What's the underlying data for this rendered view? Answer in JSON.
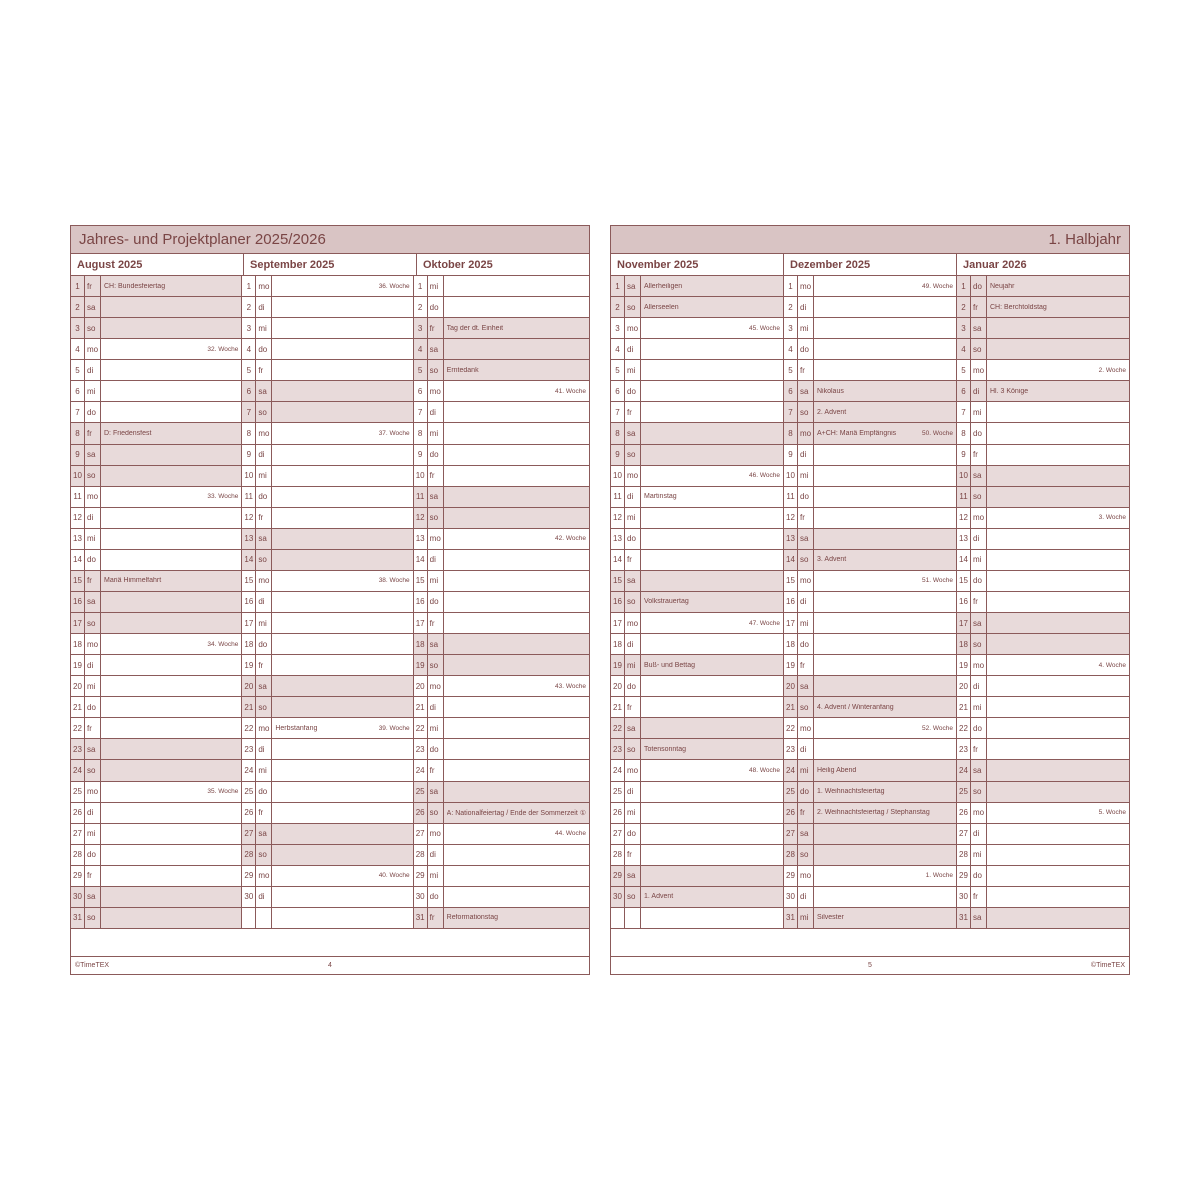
{
  "colors": {
    "line": "#8b5a5a",
    "text": "#7a4545",
    "header_bg": "#d9c4c4",
    "shade_bg": "#e8dada",
    "page_bg": "#ffffff"
  },
  "left_page": {
    "title": "Jahres- und Projektplaner 2025/2026",
    "footer_left": "©TimeTEX",
    "footer_center": "4",
    "footer_right": "",
    "months": [
      {
        "name": "August 2025",
        "days": [
          {
            "n": 1,
            "d": "fr",
            "note": "CH: Bundesfeiertag",
            "shaded": true
          },
          {
            "n": 2,
            "d": "sa",
            "shaded": true
          },
          {
            "n": 3,
            "d": "so",
            "shaded": true
          },
          {
            "n": 4,
            "d": "mo",
            "right": "32. Woche"
          },
          {
            "n": 5,
            "d": "di"
          },
          {
            "n": 6,
            "d": "mi"
          },
          {
            "n": 7,
            "d": "do"
          },
          {
            "n": 8,
            "d": "fr",
            "note": "D: Friedensfest",
            "shaded": true
          },
          {
            "n": 9,
            "d": "sa",
            "shaded": true
          },
          {
            "n": 10,
            "d": "so",
            "shaded": true
          },
          {
            "n": 11,
            "d": "mo",
            "right": "33. Woche"
          },
          {
            "n": 12,
            "d": "di"
          },
          {
            "n": 13,
            "d": "mi"
          },
          {
            "n": 14,
            "d": "do"
          },
          {
            "n": 15,
            "d": "fr",
            "note": "Mariä Himmelfahrt",
            "shaded": true
          },
          {
            "n": 16,
            "d": "sa",
            "shaded": true
          },
          {
            "n": 17,
            "d": "so",
            "shaded": true
          },
          {
            "n": 18,
            "d": "mo",
            "right": "34. Woche"
          },
          {
            "n": 19,
            "d": "di"
          },
          {
            "n": 20,
            "d": "mi"
          },
          {
            "n": 21,
            "d": "do"
          },
          {
            "n": 22,
            "d": "fr"
          },
          {
            "n": 23,
            "d": "sa",
            "shaded": true
          },
          {
            "n": 24,
            "d": "so",
            "shaded": true
          },
          {
            "n": 25,
            "d": "mo",
            "right": "35. Woche"
          },
          {
            "n": 26,
            "d": "di"
          },
          {
            "n": 27,
            "d": "mi"
          },
          {
            "n": 28,
            "d": "do"
          },
          {
            "n": 29,
            "d": "fr"
          },
          {
            "n": 30,
            "d": "sa",
            "shaded": true
          },
          {
            "n": 31,
            "d": "so",
            "shaded": true
          }
        ]
      },
      {
        "name": "September 2025",
        "days": [
          {
            "n": 1,
            "d": "mo",
            "right": "36. Woche"
          },
          {
            "n": 2,
            "d": "di"
          },
          {
            "n": 3,
            "d": "mi"
          },
          {
            "n": 4,
            "d": "do"
          },
          {
            "n": 5,
            "d": "fr"
          },
          {
            "n": 6,
            "d": "sa",
            "shaded": true
          },
          {
            "n": 7,
            "d": "so",
            "shaded": true
          },
          {
            "n": 8,
            "d": "mo",
            "right": "37. Woche"
          },
          {
            "n": 9,
            "d": "di"
          },
          {
            "n": 10,
            "d": "mi"
          },
          {
            "n": 11,
            "d": "do"
          },
          {
            "n": 12,
            "d": "fr"
          },
          {
            "n": 13,
            "d": "sa",
            "shaded": true
          },
          {
            "n": 14,
            "d": "so",
            "shaded": true
          },
          {
            "n": 15,
            "d": "mo",
            "right": "38. Woche"
          },
          {
            "n": 16,
            "d": "di"
          },
          {
            "n": 17,
            "d": "mi"
          },
          {
            "n": 18,
            "d": "do"
          },
          {
            "n": 19,
            "d": "fr"
          },
          {
            "n": 20,
            "d": "sa",
            "shaded": true
          },
          {
            "n": 21,
            "d": "so",
            "shaded": true
          },
          {
            "n": 22,
            "d": "mo",
            "note": "Herbstanfang",
            "right": "39. Woche"
          },
          {
            "n": 23,
            "d": "di"
          },
          {
            "n": 24,
            "d": "mi"
          },
          {
            "n": 25,
            "d": "do"
          },
          {
            "n": 26,
            "d": "fr"
          },
          {
            "n": 27,
            "d": "sa",
            "shaded": true
          },
          {
            "n": 28,
            "d": "so",
            "shaded": true
          },
          {
            "n": 29,
            "d": "mo",
            "right": "40. Woche"
          },
          {
            "n": 30,
            "d": "di"
          },
          {
            "empty": true
          }
        ]
      },
      {
        "name": "Oktober 2025",
        "days": [
          {
            "n": 1,
            "d": "mi"
          },
          {
            "n": 2,
            "d": "do"
          },
          {
            "n": 3,
            "d": "fr",
            "note": "Tag der dt. Einheit",
            "shaded": true
          },
          {
            "n": 4,
            "d": "sa",
            "shaded": true
          },
          {
            "n": 5,
            "d": "so",
            "note": "Erntedank",
            "shaded": true
          },
          {
            "n": 6,
            "d": "mo",
            "right": "41. Woche"
          },
          {
            "n": 7,
            "d": "di"
          },
          {
            "n": 8,
            "d": "mi"
          },
          {
            "n": 9,
            "d": "do"
          },
          {
            "n": 10,
            "d": "fr"
          },
          {
            "n": 11,
            "d": "sa",
            "shaded": true
          },
          {
            "n": 12,
            "d": "so",
            "shaded": true
          },
          {
            "n": 13,
            "d": "mo",
            "right": "42. Woche"
          },
          {
            "n": 14,
            "d": "di"
          },
          {
            "n": 15,
            "d": "mi"
          },
          {
            "n": 16,
            "d": "do"
          },
          {
            "n": 17,
            "d": "fr"
          },
          {
            "n": 18,
            "d": "sa",
            "shaded": true
          },
          {
            "n": 19,
            "d": "so",
            "shaded": true
          },
          {
            "n": 20,
            "d": "mo",
            "right": "43. Woche"
          },
          {
            "n": 21,
            "d": "di"
          },
          {
            "n": 22,
            "d": "mi"
          },
          {
            "n": 23,
            "d": "do"
          },
          {
            "n": 24,
            "d": "fr"
          },
          {
            "n": 25,
            "d": "sa",
            "shaded": true
          },
          {
            "n": 26,
            "d": "so",
            "note": "A: Nationalfeiertag / Ende der Sommerzeit ①",
            "shaded": true
          },
          {
            "n": 27,
            "d": "mo",
            "right": "44. Woche"
          },
          {
            "n": 28,
            "d": "di"
          },
          {
            "n": 29,
            "d": "mi"
          },
          {
            "n": 30,
            "d": "do"
          },
          {
            "n": 31,
            "d": "fr",
            "note": "Reformationstag",
            "shaded": true
          }
        ]
      }
    ]
  },
  "right_page": {
    "title": "1. Halbjahr",
    "footer_left": "",
    "footer_center": "5",
    "footer_right": "©TimeTEX",
    "months": [
      {
        "name": "November 2025",
        "days": [
          {
            "n": 1,
            "d": "sa",
            "note": "Allerheiligen",
            "shaded": true
          },
          {
            "n": 2,
            "d": "so",
            "note": "Allerseelen",
            "shaded": true
          },
          {
            "n": 3,
            "d": "mo",
            "right": "45. Woche"
          },
          {
            "n": 4,
            "d": "di"
          },
          {
            "n": 5,
            "d": "mi"
          },
          {
            "n": 6,
            "d": "do"
          },
          {
            "n": 7,
            "d": "fr"
          },
          {
            "n": 8,
            "d": "sa",
            "shaded": true
          },
          {
            "n": 9,
            "d": "so",
            "shaded": true
          },
          {
            "n": 10,
            "d": "mo",
            "right": "46. Woche"
          },
          {
            "n": 11,
            "d": "di",
            "note": "Martinstag"
          },
          {
            "n": 12,
            "d": "mi"
          },
          {
            "n": 13,
            "d": "do"
          },
          {
            "n": 14,
            "d": "fr"
          },
          {
            "n": 15,
            "d": "sa",
            "shaded": true
          },
          {
            "n": 16,
            "d": "so",
            "note": "Volkstrauertag",
            "shaded": true
          },
          {
            "n": 17,
            "d": "mo",
            "right": "47. Woche"
          },
          {
            "n": 18,
            "d": "di"
          },
          {
            "n": 19,
            "d": "mi",
            "note": "Buß- und Bettag",
            "shaded": true
          },
          {
            "n": 20,
            "d": "do"
          },
          {
            "n": 21,
            "d": "fr"
          },
          {
            "n": 22,
            "d": "sa",
            "shaded": true
          },
          {
            "n": 23,
            "d": "so",
            "note": "Totensonntag",
            "shaded": true
          },
          {
            "n": 24,
            "d": "mo",
            "right": "48. Woche"
          },
          {
            "n": 25,
            "d": "di"
          },
          {
            "n": 26,
            "d": "mi"
          },
          {
            "n": 27,
            "d": "do"
          },
          {
            "n": 28,
            "d": "fr"
          },
          {
            "n": 29,
            "d": "sa",
            "shaded": true
          },
          {
            "n": 30,
            "d": "so",
            "note": "1. Advent",
            "shaded": true
          },
          {
            "empty": true
          }
        ]
      },
      {
        "name": "Dezember 2025",
        "days": [
          {
            "n": 1,
            "d": "mo",
            "right": "49. Woche"
          },
          {
            "n": 2,
            "d": "di"
          },
          {
            "n": 3,
            "d": "mi"
          },
          {
            "n": 4,
            "d": "do"
          },
          {
            "n": 5,
            "d": "fr"
          },
          {
            "n": 6,
            "d": "sa",
            "note": "Nikolaus",
            "shaded": true
          },
          {
            "n": 7,
            "d": "so",
            "note": "2. Advent",
            "shaded": true
          },
          {
            "n": 8,
            "d": "mo",
            "note": "A+CH: Mariä Empfängnis",
            "right": "50. Woche",
            "shaded": true
          },
          {
            "n": 9,
            "d": "di"
          },
          {
            "n": 10,
            "d": "mi"
          },
          {
            "n": 11,
            "d": "do"
          },
          {
            "n": 12,
            "d": "fr"
          },
          {
            "n": 13,
            "d": "sa",
            "shaded": true
          },
          {
            "n": 14,
            "d": "so",
            "note": "3. Advent",
            "shaded": true
          },
          {
            "n": 15,
            "d": "mo",
            "right": "51. Woche"
          },
          {
            "n": 16,
            "d": "di"
          },
          {
            "n": 17,
            "d": "mi"
          },
          {
            "n": 18,
            "d": "do"
          },
          {
            "n": 19,
            "d": "fr"
          },
          {
            "n": 20,
            "d": "sa",
            "shaded": true
          },
          {
            "n": 21,
            "d": "so",
            "note": "4. Advent / Winteranfang",
            "shaded": true
          },
          {
            "n": 22,
            "d": "mo",
            "right": "52. Woche"
          },
          {
            "n": 23,
            "d": "di"
          },
          {
            "n": 24,
            "d": "mi",
            "note": "Heilig Abend",
            "shaded": true
          },
          {
            "n": 25,
            "d": "do",
            "note": "1. Weihnachtsfeiertag",
            "shaded": true
          },
          {
            "n": 26,
            "d": "fr",
            "note": "2. Weihnachtsfeiertag / Stephanstag",
            "shaded": true
          },
          {
            "n": 27,
            "d": "sa",
            "shaded": true
          },
          {
            "n": 28,
            "d": "so",
            "shaded": true
          },
          {
            "n": 29,
            "d": "mo",
            "right": "1. Woche"
          },
          {
            "n": 30,
            "d": "di"
          },
          {
            "n": 31,
            "d": "mi",
            "note": "Silvester",
            "shaded": true
          }
        ]
      },
      {
        "name": "Januar 2026",
        "days": [
          {
            "n": 1,
            "d": "do",
            "note": "Neujahr",
            "shaded": true
          },
          {
            "n": 2,
            "d": "fr",
            "note": "CH: Berchtoldstag",
            "shaded": true
          },
          {
            "n": 3,
            "d": "sa",
            "shaded": true
          },
          {
            "n": 4,
            "d": "so",
            "shaded": true
          },
          {
            "n": 5,
            "d": "mo",
            "right": "2. Woche"
          },
          {
            "n": 6,
            "d": "di",
            "note": "Hl. 3 Könige",
            "shaded": true
          },
          {
            "n": 7,
            "d": "mi"
          },
          {
            "n": 8,
            "d": "do"
          },
          {
            "n": 9,
            "d": "fr"
          },
          {
            "n": 10,
            "d": "sa",
            "shaded": true
          },
          {
            "n": 11,
            "d": "so",
            "shaded": true
          },
          {
            "n": 12,
            "d": "mo",
            "right": "3. Woche"
          },
          {
            "n": 13,
            "d": "di"
          },
          {
            "n": 14,
            "d": "mi"
          },
          {
            "n": 15,
            "d": "do"
          },
          {
            "n": 16,
            "d": "fr"
          },
          {
            "n": 17,
            "d": "sa",
            "shaded": true
          },
          {
            "n": 18,
            "d": "so",
            "shaded": true
          },
          {
            "n": 19,
            "d": "mo",
            "right": "4. Woche"
          },
          {
            "n": 20,
            "d": "di"
          },
          {
            "n": 21,
            "d": "mi"
          },
          {
            "n": 22,
            "d": "do"
          },
          {
            "n": 23,
            "d": "fr"
          },
          {
            "n": 24,
            "d": "sa",
            "shaded": true
          },
          {
            "n": 25,
            "d": "so",
            "shaded": true
          },
          {
            "n": 26,
            "d": "mo",
            "right": "5. Woche"
          },
          {
            "n": 27,
            "d": "di"
          },
          {
            "n": 28,
            "d": "mi"
          },
          {
            "n": 29,
            "d": "do"
          },
          {
            "n": 30,
            "d": "fr"
          },
          {
            "n": 31,
            "d": "sa",
            "shaded": true
          }
        ]
      }
    ]
  }
}
